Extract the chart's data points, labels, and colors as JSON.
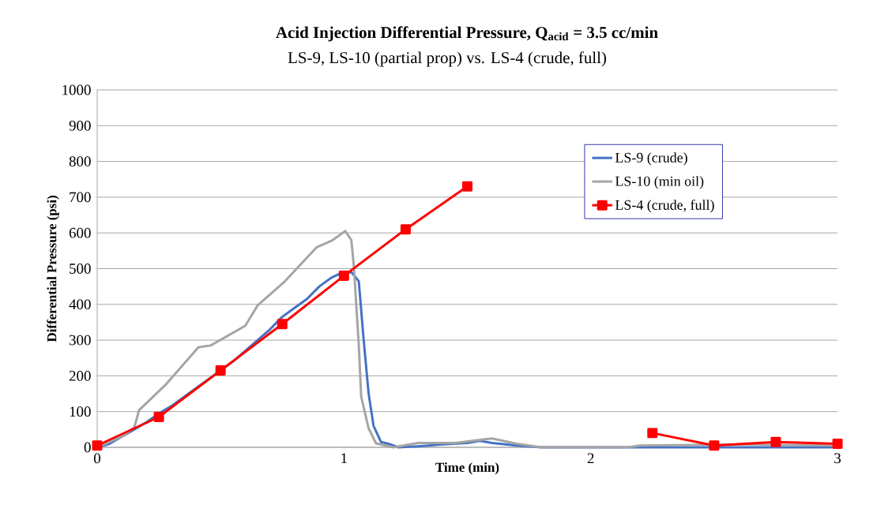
{
  "chart_data": {
    "type": "line",
    "title": "Acid Injection Differential Pressure, Q$_{acid}$ = 3.5 cc/min",
    "subtitle": "LS-9, LS-10 (partial prop) vs. LS-4 (crude, full)",
    "xlabel": "Time (min)",
    "ylabel": "Differential Pressure (psi)",
    "xlim": [
      0,
      3
    ],
    "xticks": [
      0,
      1,
      2,
      3
    ],
    "ylim": [
      0,
      1000
    ],
    "yticks": [
      0,
      100,
      200,
      300,
      400,
      500,
      600,
      700,
      800,
      900,
      1000
    ],
    "grid": "y",
    "legend": "top right",
    "series": [
      {
        "name": "LS-9 (crude)",
        "color": "#4472c4",
        "marker": "none",
        "x": [
          0,
          0.05,
          0.1,
          0.15,
          0.2,
          0.25,
          0.3,
          0.35,
          0.4,
          0.45,
          0.5,
          0.55,
          0.6,
          0.65,
          0.7,
          0.75,
          0.8,
          0.85,
          0.9,
          0.95,
          0.98,
          1.03,
          1.06,
          1.08,
          1.1,
          1.12,
          1.15,
          1.18,
          1.22,
          1.3,
          1.4,
          1.5,
          1.55,
          1.6,
          1.7,
          1.8,
          2.0,
          2.5,
          3.0
        ],
        "values": [
          0,
          10,
          30,
          50,
          70,
          95,
          115,
          140,
          165,
          190,
          215,
          240,
          270,
          300,
          330,
          365,
          390,
          415,
          450,
          475,
          485,
          490,
          465,
          300,
          150,
          60,
          15,
          10,
          0,
          3,
          8,
          12,
          18,
          12,
          5,
          0,
          0,
          0,
          0
        ]
      },
      {
        "name": "LS-10 (min oil)",
        "color": "#a5a5a5",
        "marker": "none",
        "x": [
          0,
          0.1,
          0.15,
          0.17,
          0.28,
          0.41,
          0.46,
          0.6,
          0.65,
          0.76,
          0.89,
          0.95,
          1.005,
          1.03,
          1.04,
          1.06,
          1.07,
          1.1,
          1.13,
          1.2,
          1.3,
          1.45,
          1.6,
          1.7,
          1.8,
          2.15,
          2.2,
          2.6,
          3.0
        ],
        "values": [
          0,
          30,
          55,
          104,
          177,
          280,
          285,
          340,
          397,
          464,
          560,
          578,
          605,
          580,
          508,
          287,
          141,
          53,
          11,
          0,
          12,
          12,
          25,
          10,
          0,
          0,
          5,
          8,
          5
        ]
      },
      {
        "name": "LS-4 (crude, full)",
        "color": "#ff0000",
        "marker": "square",
        "x": [
          0,
          0.25,
          0.5,
          0.75,
          1.0,
          1.25,
          1.5,
          2.0,
          2.25,
          2.5,
          2.75,
          3.0
        ],
        "values": [
          5,
          85,
          215,
          345,
          480,
          610,
          730,
          null,
          40,
          5,
          15,
          10
        ]
      }
    ]
  }
}
